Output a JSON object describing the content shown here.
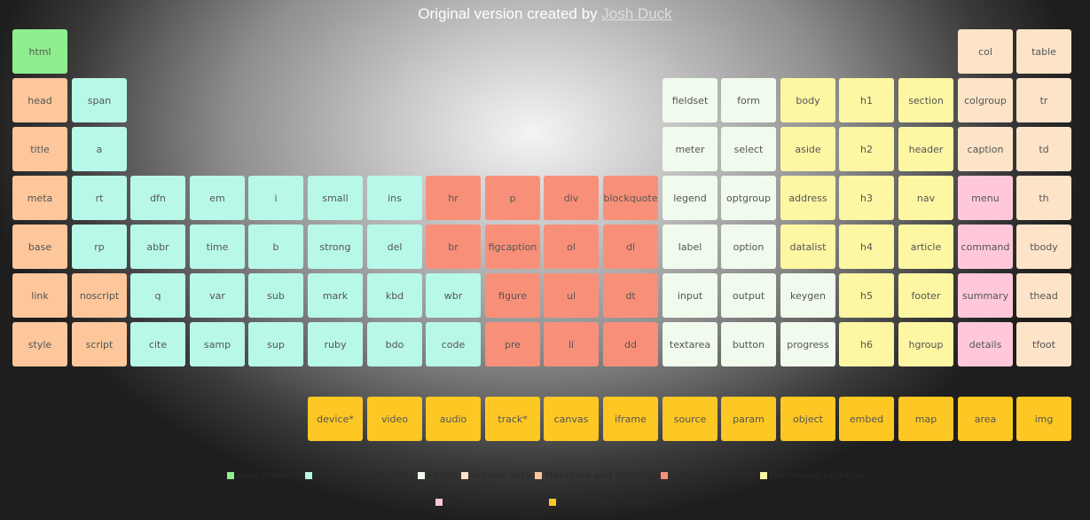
{
  "credit": {
    "prefix": "Original version created by",
    "author": "Josh Duck"
  },
  "colors": {
    "root": "#8fef8f",
    "text": "#b8f8e8",
    "forms": "#f0fbed",
    "tab": "#fde4c8",
    "meta": "#fdc79b",
    "group": "#f89079",
    "doc": "#fdf6a3",
    "inter": "#ffc8d9",
    "embed": "#fdc724"
  },
  "elements": [
    {
      "label": "html",
      "cat": "root",
      "row": 0,
      "col": 0
    },
    {
      "label": "col",
      "cat": "tab",
      "row": 0,
      "col": 16
    },
    {
      "label": "table",
      "cat": "tab",
      "row": 0,
      "col": 17
    },
    {
      "label": "head",
      "cat": "meta",
      "row": 1,
      "col": 0
    },
    {
      "label": "span",
      "cat": "text",
      "row": 1,
      "col": 1
    },
    {
      "label": "fieldset",
      "cat": "forms",
      "row": 1,
      "col": 11
    },
    {
      "label": "form",
      "cat": "forms",
      "row": 1,
      "col": 12
    },
    {
      "label": "body",
      "cat": "doc",
      "row": 1,
      "col": 13
    },
    {
      "label": "h1",
      "cat": "doc",
      "row": 1,
      "col": 14
    },
    {
      "label": "section",
      "cat": "doc",
      "row": 1,
      "col": 15
    },
    {
      "label": "colgroup",
      "cat": "tab",
      "row": 1,
      "col": 16
    },
    {
      "label": "tr",
      "cat": "tab",
      "row": 1,
      "col": 17
    },
    {
      "label": "title",
      "cat": "meta",
      "row": 2,
      "col": 0
    },
    {
      "label": "a",
      "cat": "text",
      "row": 2,
      "col": 1
    },
    {
      "label": "meter",
      "cat": "forms",
      "row": 2,
      "col": 11
    },
    {
      "label": "select",
      "cat": "forms",
      "row": 2,
      "col": 12
    },
    {
      "label": "aside",
      "cat": "doc",
      "row": 2,
      "col": 13
    },
    {
      "label": "h2",
      "cat": "doc",
      "row": 2,
      "col": 14
    },
    {
      "label": "header",
      "cat": "doc",
      "row": 2,
      "col": 15
    },
    {
      "label": "caption",
      "cat": "tab",
      "row": 2,
      "col": 16
    },
    {
      "label": "td",
      "cat": "tab",
      "row": 2,
      "col": 17
    },
    {
      "label": "meta",
      "cat": "meta",
      "row": 3,
      "col": 0
    },
    {
      "label": "rt",
      "cat": "text",
      "row": 3,
      "col": 1
    },
    {
      "label": "dfn",
      "cat": "text",
      "row": 3,
      "col": 2
    },
    {
      "label": "em",
      "cat": "text",
      "row": 3,
      "col": 3
    },
    {
      "label": "i",
      "cat": "text",
      "row": 3,
      "col": 4
    },
    {
      "label": "small",
      "cat": "text",
      "row": 3,
      "col": 5
    },
    {
      "label": "ins",
      "cat": "text",
      "row": 3,
      "col": 6
    },
    {
      "label": "hr",
      "cat": "group",
      "row": 3,
      "col": 7
    },
    {
      "label": "p",
      "cat": "group",
      "row": 3,
      "col": 8
    },
    {
      "label": "div",
      "cat": "group",
      "row": 3,
      "col": 9
    },
    {
      "label": "blockquote",
      "cat": "group",
      "row": 3,
      "col": 10
    },
    {
      "label": "legend",
      "cat": "forms",
      "row": 3,
      "col": 11
    },
    {
      "label": "optgroup",
      "cat": "forms",
      "row": 3,
      "col": 12
    },
    {
      "label": "address",
      "cat": "doc",
      "row": 3,
      "col": 13
    },
    {
      "label": "h3",
      "cat": "doc",
      "row": 3,
      "col": 14
    },
    {
      "label": "nav",
      "cat": "doc",
      "row": 3,
      "col": 15
    },
    {
      "label": "menu",
      "cat": "inter",
      "row": 3,
      "col": 16
    },
    {
      "label": "th",
      "cat": "tab",
      "row": 3,
      "col": 17
    },
    {
      "label": "base",
      "cat": "meta",
      "row": 4,
      "col": 0
    },
    {
      "label": "rp",
      "cat": "text",
      "row": 4,
      "col": 1
    },
    {
      "label": "abbr",
      "cat": "text",
      "row": 4,
      "col": 2
    },
    {
      "label": "time",
      "cat": "text",
      "row": 4,
      "col": 3
    },
    {
      "label": "b",
      "cat": "text",
      "row": 4,
      "col": 4
    },
    {
      "label": "strong",
      "cat": "text",
      "row": 4,
      "col": 5
    },
    {
      "label": "del",
      "cat": "text",
      "row": 4,
      "col": 6
    },
    {
      "label": "br",
      "cat": "group",
      "row": 4,
      "col": 7
    },
    {
      "label": "figcaption",
      "cat": "group",
      "row": 4,
      "col": 8
    },
    {
      "label": "ol",
      "cat": "group",
      "row": 4,
      "col": 9
    },
    {
      "label": "dl",
      "cat": "group",
      "row": 4,
      "col": 10
    },
    {
      "label": "label",
      "cat": "forms",
      "row": 4,
      "col": 11
    },
    {
      "label": "option",
      "cat": "forms",
      "row": 4,
      "col": 12
    },
    {
      "label": "datalist",
      "cat": "doc",
      "row": 4,
      "col": 13
    },
    {
      "label": "h4",
      "cat": "doc",
      "row": 4,
      "col": 14
    },
    {
      "label": "article",
      "cat": "doc",
      "row": 4,
      "col": 15
    },
    {
      "label": "command",
      "cat": "inter",
      "row": 4,
      "col": 16
    },
    {
      "label": "tbody",
      "cat": "tab",
      "row": 4,
      "col": 17
    },
    {
      "label": "link",
      "cat": "meta",
      "row": 5,
      "col": 0
    },
    {
      "label": "noscript",
      "cat": "meta",
      "row": 5,
      "col": 1
    },
    {
      "label": "q",
      "cat": "text",
      "row": 5,
      "col": 2
    },
    {
      "label": "var",
      "cat": "text",
      "row": 5,
      "col": 3
    },
    {
      "label": "sub",
      "cat": "text",
      "row": 5,
      "col": 4
    },
    {
      "label": "mark",
      "cat": "text",
      "row": 5,
      "col": 5
    },
    {
      "label": "kbd",
      "cat": "text",
      "row": 5,
      "col": 6
    },
    {
      "label": "wbr",
      "cat": "text",
      "row": 5,
      "col": 7
    },
    {
      "label": "figure",
      "cat": "group",
      "row": 5,
      "col": 8
    },
    {
      "label": "ul",
      "cat": "group",
      "row": 5,
      "col": 9
    },
    {
      "label": "dt",
      "cat": "group",
      "row": 5,
      "col": 10
    },
    {
      "label": "input",
      "cat": "forms",
      "row": 5,
      "col": 11
    },
    {
      "label": "output",
      "cat": "forms",
      "row": 5,
      "col": 12
    },
    {
      "label": "keygen",
      "cat": "forms",
      "row": 5,
      "col": 13
    },
    {
      "label": "h5",
      "cat": "doc",
      "row": 5,
      "col": 14
    },
    {
      "label": "footer",
      "cat": "doc",
      "row": 5,
      "col": 15
    },
    {
      "label": "summary",
      "cat": "inter",
      "row": 5,
      "col": 16
    },
    {
      "label": "thead",
      "cat": "tab",
      "row": 5,
      "col": 17
    },
    {
      "label": "style",
      "cat": "meta",
      "row": 6,
      "col": 0
    },
    {
      "label": "script",
      "cat": "meta",
      "row": 6,
      "col": 1
    },
    {
      "label": "cite",
      "cat": "text",
      "row": 6,
      "col": 2
    },
    {
      "label": "samp",
      "cat": "text",
      "row": 6,
      "col": 3
    },
    {
      "label": "sup",
      "cat": "text",
      "row": 6,
      "col": 4
    },
    {
      "label": "ruby",
      "cat": "text",
      "row": 6,
      "col": 5
    },
    {
      "label": "bdo",
      "cat": "text",
      "row": 6,
      "col": 6
    },
    {
      "label": "code",
      "cat": "text",
      "row": 6,
      "col": 7
    },
    {
      "label": "pre",
      "cat": "group",
      "row": 6,
      "col": 8
    },
    {
      "label": "li",
      "cat": "group",
      "row": 6,
      "col": 9
    },
    {
      "label": "dd",
      "cat": "group",
      "row": 6,
      "col": 10
    },
    {
      "label": "textarea",
      "cat": "forms",
      "row": 6,
      "col": 11
    },
    {
      "label": "button",
      "cat": "forms",
      "row": 6,
      "col": 12
    },
    {
      "label": "progress",
      "cat": "forms",
      "row": 6,
      "col": 13
    },
    {
      "label": "h6",
      "cat": "doc",
      "row": 6,
      "col": 14
    },
    {
      "label": "hgroup",
      "cat": "doc",
      "row": 6,
      "col": 15
    },
    {
      "label": "details",
      "cat": "inter",
      "row": 6,
      "col": 16
    },
    {
      "label": "tfoot",
      "cat": "tab",
      "row": 6,
      "col": 17
    },
    {
      "label": "device*",
      "cat": "embed",
      "row": 7,
      "col": 5
    },
    {
      "label": "video",
      "cat": "embed",
      "row": 7,
      "col": 6
    },
    {
      "label": "audio",
      "cat": "embed",
      "row": 7,
      "col": 7
    },
    {
      "label": "track*",
      "cat": "embed",
      "row": 7,
      "col": 8
    },
    {
      "label": "canvas",
      "cat": "embed",
      "row": 7,
      "col": 9
    },
    {
      "label": "iframe",
      "cat": "embed",
      "row": 7,
      "col": 10
    },
    {
      "label": "source",
      "cat": "embed",
      "row": 7,
      "col": 11
    },
    {
      "label": "param",
      "cat": "embed",
      "row": 7,
      "col": 12
    },
    {
      "label": "object",
      "cat": "embed",
      "row": 7,
      "col": 13
    },
    {
      "label": "embed",
      "cat": "embed",
      "row": 7,
      "col": 14
    },
    {
      "label": "map",
      "cat": "embed",
      "row": 7,
      "col": 15
    },
    {
      "label": "area",
      "cat": "embed",
      "row": 7,
      "col": 16
    },
    {
      "label": "img",
      "cat": "embed",
      "row": 7,
      "col": 17
    }
  ],
  "legend": [
    {
      "label": "Root element",
      "cat": "root",
      "line": 0
    },
    {
      "label": "Text-level semantics",
      "cat": "text",
      "line": 0
    },
    {
      "label": "Forms",
      "cat": "forms",
      "line": 0
    },
    {
      "label": "Tabular data",
      "cat": "tab",
      "line": 0
    },
    {
      "label": "Metadata and scripting",
      "cat": "meta",
      "line": 0
    },
    {
      "label": "Grouping content",
      "cat": "group",
      "line": 0
    },
    {
      "label": "Document sections",
      "cat": "doc",
      "line": 0
    },
    {
      "label": "Interactive elements",
      "cat": "inter",
      "line": 1
    },
    {
      "label": "Embedding content",
      "cat": "embed",
      "line": 1
    }
  ]
}
